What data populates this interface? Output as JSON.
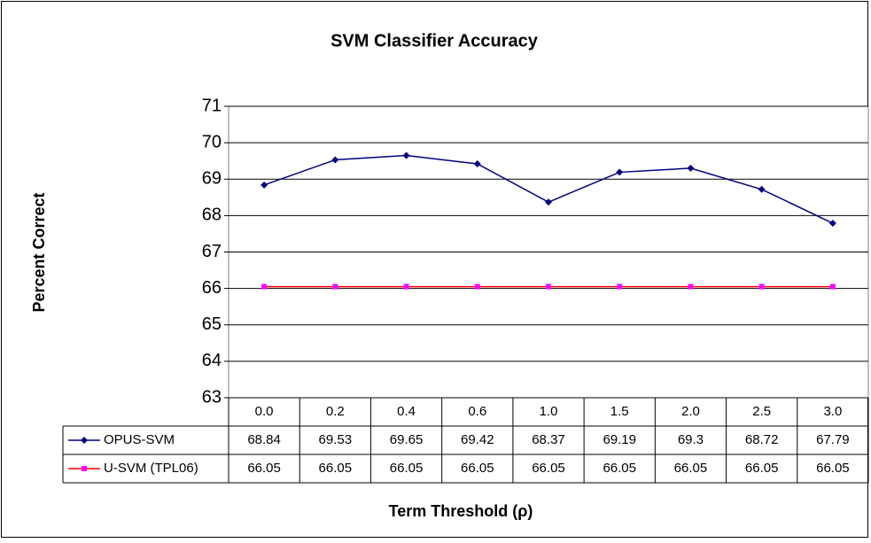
{
  "chart_data": {
    "type": "line",
    "title": "SVM Classifier Accuracy",
    "ylabel": "Percent Correct",
    "xlabel": "Term Threshold (ρ)",
    "categories": [
      "0.0",
      "0.2",
      "0.4",
      "0.6",
      "1.0",
      "1.5",
      "2.0",
      "2.5",
      "3.0"
    ],
    "series": [
      {
        "name": "OPUS-SVM",
        "color": "#000080",
        "marker": "diamond",
        "marker_color": "#000080",
        "values": [
          68.84,
          69.53,
          69.65,
          69.42,
          68.37,
          69.19,
          69.3,
          68.72,
          67.79
        ]
      },
      {
        "name": "U-SVM (TPL06)",
        "color": "#ff0000",
        "marker": "square",
        "marker_color": "#ff00ff",
        "values": [
          66.05,
          66.05,
          66.05,
          66.05,
          66.05,
          66.05,
          66.05,
          66.05,
          66.05
        ]
      }
    ],
    "ylim": [
      63,
      71
    ],
    "yticks": [
      63,
      64,
      65,
      66,
      67,
      68,
      69,
      70,
      71
    ],
    "grid": true,
    "data_table": true
  }
}
